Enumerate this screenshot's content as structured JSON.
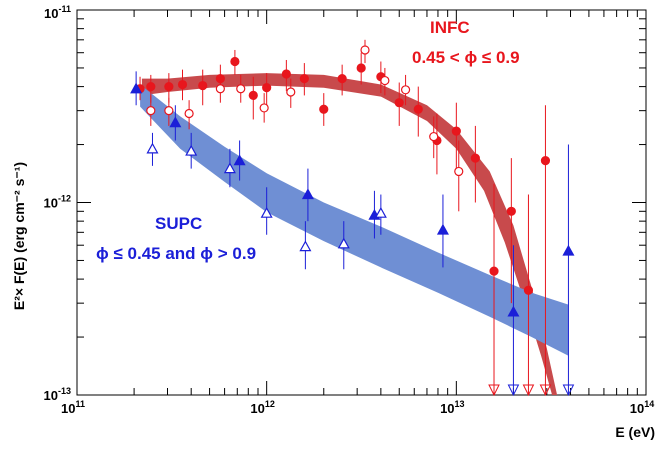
{
  "chart_data": {
    "type": "scatter",
    "title": "",
    "xlabel": "E (eV)",
    "ylabel": "E²× F(E) (erg cm⁻² s⁻¹)",
    "xscale": "log",
    "yscale": "log",
    "xlim": [
      100000000000.0,
      100000000000000.0
    ],
    "ylim": [
      1e-13,
      1e-11
    ],
    "x_ticks": [
      {
        "mant": "10",
        "exp": "11",
        "value": 100000000000.0
      },
      {
        "mant": "10",
        "exp": "12",
        "value": 1000000000000.0
      },
      {
        "mant": "10",
        "exp": "13",
        "value": 10000000000000.0
      },
      {
        "mant": "10",
        "exp": "14",
        "value": 100000000000000.0
      }
    ],
    "y_ticks": [
      {
        "mant": "10",
        "exp": "-13",
        "value": 1e-13
      },
      {
        "mant": "10",
        "exp": "-12",
        "value": 1e-12
      },
      {
        "mant": "10",
        "exp": "-11",
        "value": 1e-11
      }
    ],
    "annotations": {
      "infc_label": "INFC",
      "infc_range": "0.45 < ϕ ≤ 0.9",
      "supc_label": "SUPC",
      "supc_range": "ϕ ≤ 0.45 and ϕ > 0.9"
    },
    "colors": {
      "red": "#e8161d",
      "blue": "#1b1fd8",
      "red_band": "#c84a4c",
      "blue_band": "#6f8fd4"
    },
    "bands": [
      {
        "name": "INFC",
        "color": "#c84a4c",
        "upper": [
          [
            220000000000.0,
            4.4e-12
          ],
          [
            300000000000.0,
            4.4e-12
          ],
          [
            500000000000.0,
            4.6e-12
          ],
          [
            1000000000000.0,
            4.7e-12
          ],
          [
            2000000000000.0,
            4.6e-12
          ],
          [
            4000000000000.0,
            4.1e-12
          ],
          [
            7000000000000.0,
            3.2e-12
          ],
          [
            10000000000000.0,
            2.4e-12
          ],
          [
            15000000000000.0,
            1.45e-12
          ],
          [
            20000000000000.0,
            7.6e-13
          ],
          [
            25000000000000.0,
            3.6e-13
          ],
          [
            30000000000000.0,
            1.75e-13
          ],
          [
            34000000000000.0,
            1e-13
          ]
        ],
        "lower": [
          [
            32000000000000.0,
            1e-13
          ],
          [
            28000000000000.0,
            1.6e-13
          ],
          [
            23000000000000.0,
            3e-13
          ],
          [
            18000000000000.0,
            6.2e-13
          ],
          [
            14000000000000.0,
            1.15e-12
          ],
          [
            10000000000000.0,
            1.9e-12
          ],
          [
            7000000000000.0,
            2.65e-12
          ],
          [
            4000000000000.0,
            3.55e-12
          ],
          [
            2000000000000.0,
            3.95e-12
          ],
          [
            1000000000000.0,
            4.05e-12
          ],
          [
            500000000000.0,
            3.95e-12
          ],
          [
            300000000000.0,
            3.75e-12
          ],
          [
            220000000000.0,
            3.6e-12
          ]
        ]
      },
      {
        "name": "SUPC",
        "color": "#6f8fd4",
        "upper": [
          [
            215000000000.0,
            4.1e-12
          ],
          [
            350000000000.0,
            2.8e-12
          ],
          [
            600000000000.0,
            1.95e-12
          ],
          [
            1000000000000.0,
            1.42e-12
          ],
          [
            2000000000000.0,
            1e-12
          ],
          [
            4000000000000.0,
            7.5e-13
          ],
          [
            8000000000000.0,
            5.5e-13
          ],
          [
            15000000000000.0,
            4.2e-13
          ],
          [
            25000000000000.0,
            3.4e-13
          ],
          [
            39000000000000.0,
            2.95e-13
          ]
        ],
        "lower": [
          [
            39000000000000.0,
            1.6e-13
          ],
          [
            25000000000000.0,
            2e-13
          ],
          [
            15000000000000.0,
            2.55e-13
          ],
          [
            8000000000000.0,
            3.4e-13
          ],
          [
            4000000000000.0,
            4.6e-13
          ],
          [
            2000000000000.0,
            6.3e-13
          ],
          [
            1000000000000.0,
            8.9e-13
          ],
          [
            600000000000.0,
            1.28e-12
          ],
          [
            350000000000.0,
            1.9e-12
          ],
          [
            215000000000.0,
            3.15e-12
          ]
        ]
      }
    ],
    "series": [
      {
        "name": "INFC filled",
        "marker": "circle",
        "filled": true,
        "color": "#e8161d",
        "points": [
          {
            "x": 215000000000.0,
            "y": 3.9e-12,
            "lo": 3.4e-12,
            "hi": 4.5e-12
          },
          {
            "x": 245000000000.0,
            "y": 4e-12,
            "lo": 3.3e-12,
            "hi": 4.6e-12
          },
          {
            "x": 305000000000.0,
            "y": 4e-12,
            "lo": 3.3e-12,
            "hi": 4.7e-12
          },
          {
            "x": 360000000000.0,
            "y": 4.1e-12,
            "lo": 3.4e-12,
            "hi": 4.9e-12
          },
          {
            "x": 460000000000.0,
            "y": 4.05e-12,
            "lo": 3.2e-12,
            "hi": 4.9e-12
          },
          {
            "x": 570000000000.0,
            "y": 4.4e-12,
            "lo": 3.7e-12,
            "hi": 5.2e-12
          },
          {
            "x": 680000000000.0,
            "y": 5.4e-12,
            "lo": 4.6e-12,
            "hi": 6.2e-12
          },
          {
            "x": 850000000000.0,
            "y": 3.6e-12,
            "lo": 2.7e-12,
            "hi": 4.5e-12
          },
          {
            "x": 1000000000000.0,
            "y": 3.95e-12,
            "lo": 3.2e-12,
            "hi": 4.7e-12
          },
          {
            "x": 1270000000000.0,
            "y": 4.65e-12,
            "lo": 3.8e-12,
            "hi": 5.5e-12
          },
          {
            "x": 1580000000000.0,
            "y": 4.4e-12,
            "lo": 3.6e-12,
            "hi": 5.3e-12
          },
          {
            "x": 2000000000000.0,
            "y": 3.05e-12,
            "lo": 2.5e-12,
            "hi": 3.7e-12
          },
          {
            "x": 2500000000000.0,
            "y": 4.4e-12,
            "lo": 3.6e-12,
            "hi": 5.2e-12
          },
          {
            "x": 3150000000000.0,
            "y": 5e-12,
            "lo": 4.1e-12,
            "hi": 6e-12
          },
          {
            "x": 4000000000000.0,
            "y": 4.5e-12,
            "lo": 3.7e-12,
            "hi": 5.4e-12
          },
          {
            "x": 5000000000000.0,
            "y": 3.3e-12,
            "lo": 2.5e-12,
            "hi": 4.2e-12
          },
          {
            "x": 6300000000000.0,
            "y": 3.05e-12,
            "lo": 2.2e-12,
            "hi": 4e-12
          },
          {
            "x": 7900000000000.0,
            "y": 2.1e-12,
            "lo": 1.4e-12,
            "hi": 2.9e-12
          },
          {
            "x": 10000000000000.0,
            "y": 2.35e-12,
            "lo": 1.4e-12,
            "hi": 3.3e-12
          },
          {
            "x": 12600000000000.0,
            "y": 1.7e-12,
            "lo": 1e-12,
            "hi": 2.5e-12
          },
          {
            "x": 15800000000000.0,
            "y": 4.4e-13,
            "lo": 1e-13,
            "hi": 1.25e-12
          },
          {
            "x": 19500000000000.0,
            "y": 9e-13,
            "lo": 3e-13,
            "hi": 1.7e-12
          },
          {
            "x": 24000000000000.0,
            "y": 3.5e-13,
            "lo": 1e-13,
            "hi": 1.1e-12
          },
          {
            "x": 29500000000000.0,
            "y": 1.65e-12,
            "lo": 1e-13,
            "hi": 3.2e-12
          }
        ]
      },
      {
        "name": "INFC open",
        "marker": "circle",
        "filled": false,
        "color": "#e8161d",
        "points": [
          {
            "x": 245000000000.0,
            "y": 3e-12,
            "lo": 2.5e-12,
            "hi": 3.6e-12
          },
          {
            "x": 305000000000.0,
            "y": 3e-12,
            "lo": 2.5e-12,
            "hi": 3.5e-12
          },
          {
            "x": 390000000000.0,
            "y": 2.9e-12,
            "lo": 2.4e-12,
            "hi": 3.4e-12
          },
          {
            "x": 570000000000.0,
            "y": 3.9e-12,
            "lo": 3.3e-12,
            "hi": 4.5e-12
          },
          {
            "x": 730000000000.0,
            "y": 3.9e-12,
            "lo": 3.3e-12,
            "hi": 4.6e-12
          },
          {
            "x": 970000000000.0,
            "y": 3.1e-12,
            "lo": 2.6e-12,
            "hi": 3.7e-12
          },
          {
            "x": 1340000000000.0,
            "y": 3.75e-12,
            "lo": 3.1e-12,
            "hi": 4.4e-12
          },
          {
            "x": 3300000000000.0,
            "y": 6.2e-12,
            "lo": 5.3e-12,
            "hi": 7e-12
          },
          {
            "x": 4200000000000.0,
            "y": 4.3e-12,
            "lo": 3.6e-12,
            "hi": 5e-12
          },
          {
            "x": 5400000000000.0,
            "y": 3.85e-12,
            "lo": 3.2e-12,
            "hi": 4.6e-12
          },
          {
            "x": 7600000000000.0,
            "y": 2.2e-12,
            "lo": 1.7e-12,
            "hi": 2.8e-12
          },
          {
            "x": 10300000000000.0,
            "y": 1.45e-12,
            "lo": 9e-13,
            "hi": 2.1e-12
          }
        ]
      },
      {
        "name": "SUPC filled",
        "marker": "triangle",
        "filled": true,
        "color": "#1b1fd8",
        "points": [
          {
            "x": 205000000000.0,
            "y": 3.9e-12,
            "lo": 3.2e-12,
            "hi": 4.8e-12
          },
          {
            "x": 330000000000.0,
            "y": 2.6e-12,
            "lo": 2.1e-12,
            "hi": 3.2e-12
          },
          {
            "x": 720000000000.0,
            "y": 1.65e-12,
            "lo": 1.3e-12,
            "hi": 2.1e-12
          },
          {
            "x": 1650000000000.0,
            "y": 1.1e-12,
            "lo": 8e-13,
            "hi": 1.5e-12
          },
          {
            "x": 3700000000000.0,
            "y": 8.6e-13,
            "lo": 6.5e-13,
            "hi": 1.15e-12
          },
          {
            "x": 8500000000000.0,
            "y": 7.2e-13,
            "lo": 4.6e-13,
            "hi": 1.1e-12
          },
          {
            "x": 20000000000000.0,
            "y": 2.7e-13,
            "lo": 1e-13,
            "hi": 6e-13
          },
          {
            "x": 39000000000000.0,
            "y": 5.6e-13,
            "lo": 1e-13,
            "hi": 2e-12
          }
        ]
      },
      {
        "name": "SUPC open",
        "marker": "triangle",
        "filled": false,
        "color": "#1b1fd8",
        "points": [
          {
            "x": 250000000000.0,
            "y": 1.9e-12,
            "lo": 1.55e-12,
            "hi": 2.3e-12
          },
          {
            "x": 400000000000.0,
            "y": 1.85e-12,
            "lo": 1.5e-12,
            "hi": 2.3e-12
          },
          {
            "x": 640000000000.0,
            "y": 1.5e-12,
            "lo": 1.2e-12,
            "hi": 1.9e-12
          },
          {
            "x": 1000000000000.0,
            "y": 8.8e-13,
            "lo": 6.8e-13,
            "hi": 1.2e-12
          },
          {
            "x": 1600000000000.0,
            "y": 5.9e-13,
            "lo": 4.5e-13,
            "hi": 8e-13
          },
          {
            "x": 2550000000000.0,
            "y": 6.1e-13,
            "lo": 4.5e-13,
            "hi": 8e-13
          },
          {
            "x": 4000000000000.0,
            "y": 8.8e-13,
            "lo": 6.8e-13,
            "hi": 1.1e-12
          }
        ]
      }
    ]
  }
}
